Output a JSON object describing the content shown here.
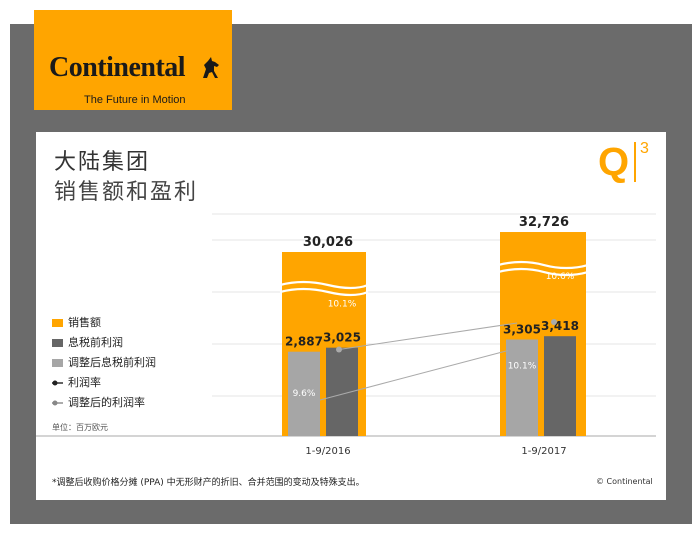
{
  "brand": {
    "name": "Continental",
    "tagline": "The Future in Motion",
    "orange": "#ffa500",
    "frame_gray": "#6b6b6b"
  },
  "header": {
    "title_line1": "大陆集团",
    "title_line2": "销售额和盈利",
    "quarter_letter": "Q",
    "quarter_number": "3"
  },
  "legend": {
    "sales": "销售额",
    "ebit": "息税前利润",
    "adj_ebit": "调整后息税前利润",
    "margin": "利润率",
    "adj_margin": "调整后的利润率"
  },
  "unit": "单位：百万欧元",
  "footnote": "*调整后收购价格分摊 (PPA) 中无形财产的折旧、合并范围的变动及特殊支出。",
  "copyright": "© Continental",
  "chart_data": {
    "type": "bar",
    "title": "大陆集团 销售额和盈利",
    "unit": "百万欧元",
    "categories": [
      "1-9/2016",
      "1-9/2017"
    ],
    "series": [
      {
        "name": "销售额",
        "values": [
          30026,
          32726
        ],
        "labels": [
          "30,026",
          "32,726"
        ],
        "color": "#ffa500"
      },
      {
        "name": "调整后息税前利润",
        "values": [
          2887,
          3305
        ],
        "labels": [
          "2,887",
          "3,305"
        ],
        "color": "#a6a6a6"
      },
      {
        "name": "息税前利润",
        "values": [
          3025,
          3418
        ],
        "labels": [
          "3,025",
          "3,418"
        ],
        "color": "#666666"
      },
      {
        "name": "调整后的利润率",
        "values": [
          9.6,
          10.1
        ],
        "labels": [
          "9.6%",
          "10.1%"
        ],
        "color": "#999999"
      },
      {
        "name": "利润率",
        "values": [
          10.1,
          10.6
        ],
        "labels": [
          "10.1%",
          "10.6%"
        ],
        "color": "#999999"
      }
    ],
    "axis_break": true
  }
}
